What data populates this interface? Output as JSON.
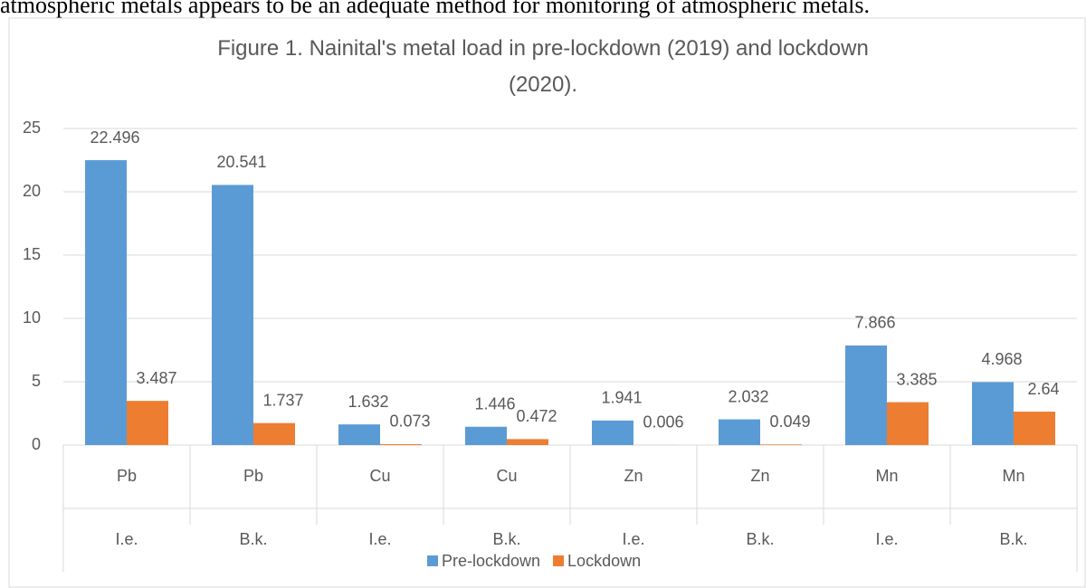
{
  "page_text": "atmospheric metals appears to be an adequate method for monitoring of atmospheric metals.",
  "chart_data": {
    "type": "bar",
    "title": "Figure 1. Nainital's metal load in pre-lockdown (2019) and lockdown (2020).",
    "categories": [
      "Pb",
      "Pb",
      "Cu",
      "Cu",
      "Zn",
      "Zn",
      "Mn",
      "Mn"
    ],
    "subcategories": [
      "I.e.",
      "B.k.",
      "I.e.",
      "B.k.",
      "I.e.",
      "B.k.",
      "I.e.",
      "B.k."
    ],
    "series": [
      {
        "name": "Pre-lockdown",
        "color": "#5b9bd5",
        "values": [
          22.496,
          20.541,
          1.632,
          1.446,
          1.941,
          2.032,
          7.866,
          4.968
        ]
      },
      {
        "name": "Lockdown",
        "color": "#ed7d31",
        "values": [
          3.487,
          1.737,
          0.073,
          0.472,
          0.006,
          0.049,
          3.385,
          2.64
        ]
      }
    ],
    "ylim": [
      0,
      25
    ],
    "yticks": [
      0,
      5,
      10,
      15,
      20,
      25
    ],
    "grid": true,
    "legend": "bottom"
  }
}
